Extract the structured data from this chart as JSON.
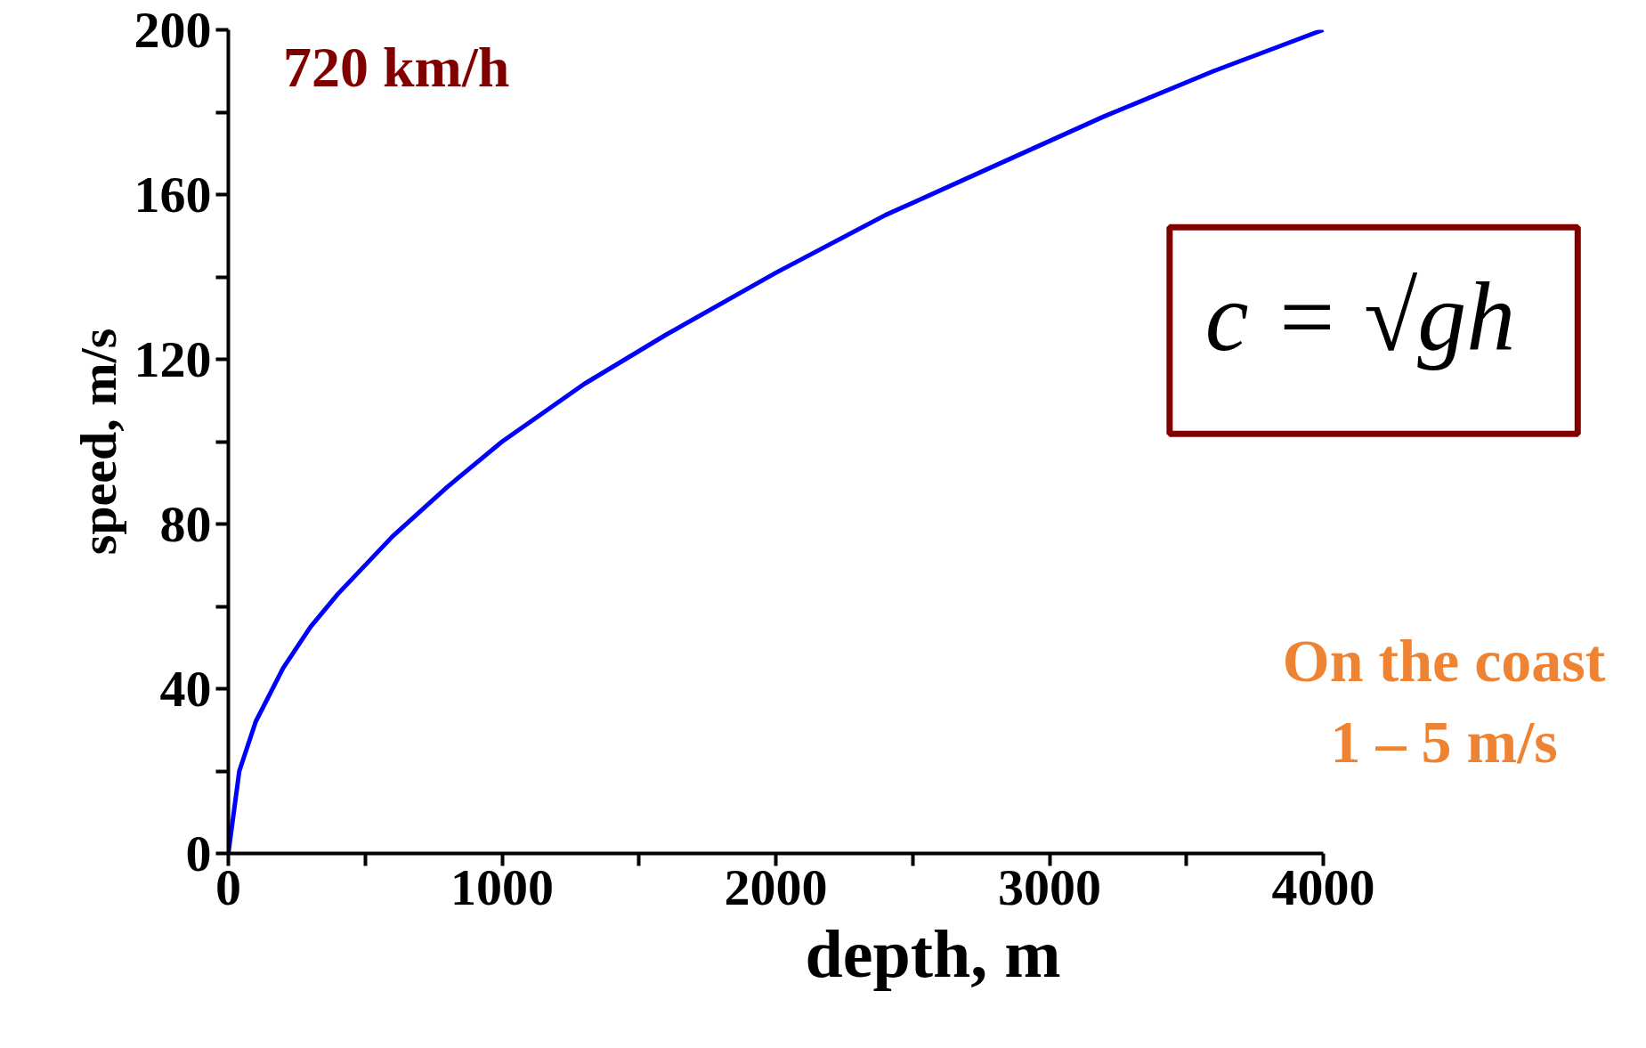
{
  "chart_data": {
    "type": "line",
    "xlabel": "depth, m",
    "ylabel": "speed, m/s",
    "x": [
      0,
      40,
      100,
      200,
      300,
      400,
      600,
      800,
      1000,
      1300,
      1600,
      2000,
      2400,
      2800,
      3200,
      3600,
      4000
    ],
    "series": [
      {
        "color": "#0000ff",
        "values": [
          0,
          20,
          32,
          45,
          55,
          63,
          77,
          89,
          100,
          114,
          126,
          141,
          155,
          167,
          179,
          190,
          200
        ]
      }
    ],
    "xlim": [
      0,
      4000
    ],
    "ylim": [
      0,
      200
    ],
    "xticks": [
      0,
      {
        "value": 500,
        "label": null
      },
      1000,
      {
        "value": 1500,
        "label": null
      },
      2000,
      {
        "value": 2500,
        "label": null
      },
      3000,
      {
        "value": 3500,
        "label": null
      },
      4000
    ],
    "yticks": [
      0,
      {
        "value": 20,
        "label": null
      },
      40,
      {
        "value": 60,
        "label": null
      },
      80,
      {
        "value": 100,
        "label": null
      },
      120,
      {
        "value": 140,
        "label": null
      },
      160,
      {
        "value": 180,
        "label": null
      },
      200
    ],
    "grid": false,
    "marker": "none",
    "line_style": "solid",
    "annotations": [
      "720 km/h",
      "c = √gh",
      "On the coast\n1 – 5 m/s"
    ]
  }
}
